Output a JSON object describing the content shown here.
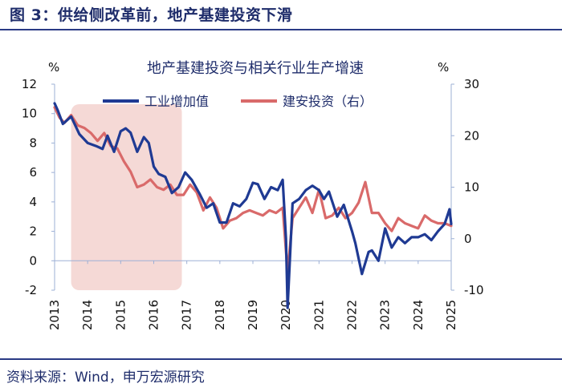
{
  "figure_title": "图 3：供给侧改革前，地产基建投资下滑",
  "source_note": "资料来源：Wind，申万宏源研究",
  "colors": {
    "accent": "#1f2d6b",
    "industry": "#1f3a93",
    "construction": "#d96a6a",
    "shade": "#f5d9d6",
    "axis": "#111111"
  },
  "chart_data": {
    "type": "line",
    "title": "地产基建投资与相关行业生产增速",
    "left_unit": "%",
    "right_unit": "%",
    "x_ticks": [
      "2013",
      "2014",
      "2015",
      "2016",
      "2017",
      "2018",
      "2019",
      "2020",
      "2021",
      "2022",
      "2023",
      "2024",
      "2025"
    ],
    "xlim": [
      2013.0,
      2025.0
    ],
    "left_ylim": [
      -2,
      12
    ],
    "left_ticks": [
      -2,
      0,
      2,
      4,
      6,
      8,
      10,
      12
    ],
    "right_ylim": [
      -10,
      30
    ],
    "right_ticks": [
      -10,
      0,
      10,
      20,
      30
    ],
    "shaded_period": [
      2013.5,
      2016.85
    ],
    "series": [
      {
        "name": "工业增加值",
        "axis": "left",
        "x": [
          2013.0,
          2013.1,
          2013.25,
          2013.5,
          2013.75,
          2014.0,
          2014.25,
          2014.45,
          2014.6,
          2014.8,
          2015.0,
          2015.15,
          2015.3,
          2015.5,
          2015.7,
          2015.85,
          2016.0,
          2016.15,
          2016.35,
          2016.55,
          2016.75,
          2016.95,
          2017.15,
          2017.4,
          2017.6,
          2017.8,
          2018.0,
          2018.2,
          2018.4,
          2018.6,
          2018.8,
          2019.0,
          2019.15,
          2019.35,
          2019.55,
          2019.75,
          2019.9,
          2020.0,
          2020.05,
          2020.2,
          2020.4,
          2020.6,
          2020.8,
          2021.0,
          2021.15,
          2021.3,
          2021.55,
          2021.75,
          2022.0,
          2022.1,
          2022.3,
          2022.5,
          2022.6,
          2022.8,
          2023.0,
          2023.2,
          2023.4,
          2023.6,
          2023.8,
          2024.0,
          2024.2,
          2024.4,
          2024.6,
          2024.8,
          2024.95,
          2025.0
        ],
        "values": [
          10.7,
          10.2,
          9.3,
          9.8,
          8.6,
          8.0,
          7.8,
          7.6,
          8.5,
          7.4,
          8.8,
          9.0,
          8.7,
          7.4,
          8.4,
          8.0,
          6.4,
          5.9,
          5.7,
          4.6,
          5.0,
          6.0,
          5.5,
          4.5,
          3.6,
          3.9,
          2.6,
          2.6,
          3.9,
          3.7,
          4.2,
          5.3,
          5.2,
          4.2,
          5.0,
          4.8,
          5.5,
          1.5,
          -3.2,
          3.9,
          4.2,
          4.8,
          5.1,
          4.8,
          4.2,
          4.7,
          3.0,
          3.8,
          2.0,
          1.2,
          -0.9,
          0.6,
          0.7,
          0.0,
          2.2,
          0.9,
          1.6,
          1.2,
          1.6,
          1.6,
          1.8,
          1.4,
          2.0,
          2.5,
          3.5,
          2.5
        ]
      },
      {
        "name": "建安投资（右）",
        "axis": "right",
        "x": [
          2013.0,
          2013.15,
          2013.3,
          2013.5,
          2013.7,
          2013.9,
          2014.1,
          2014.3,
          2014.5,
          2014.7,
          2014.9,
          2015.1,
          2015.3,
          2015.5,
          2015.7,
          2015.9,
          2016.1,
          2016.3,
          2016.5,
          2016.7,
          2016.9,
          2017.1,
          2017.3,
          2017.5,
          2017.7,
          2017.9,
          2018.1,
          2018.3,
          2018.5,
          2018.7,
          2018.9,
          2019.1,
          2019.3,
          2019.5,
          2019.7,
          2019.9,
          2020.05,
          2020.2,
          2020.4,
          2020.6,
          2020.8,
          2021.0,
          2021.2,
          2021.4,
          2021.6,
          2021.8,
          2022.0,
          2022.2,
          2022.4,
          2022.6,
          2022.8,
          2023.0,
          2023.2,
          2023.4,
          2023.6,
          2023.8,
          2024.0,
          2024.2,
          2024.4,
          2024.6,
          2024.8,
          2025.0
        ],
        "values": [
          25.5,
          23.5,
          22.5,
          24.0,
          22.0,
          21.5,
          20.5,
          19.0,
          20.5,
          18.0,
          17.5,
          15.0,
          13.0,
          10.0,
          10.5,
          11.5,
          10.0,
          9.5,
          10.5,
          8.5,
          8.5,
          10.5,
          9.0,
          5.5,
          8.0,
          6.0,
          2.0,
          3.5,
          4.0,
          5.0,
          5.5,
          5.0,
          4.5,
          5.5,
          5.0,
          6.0,
          -6.5,
          4.0,
          6.0,
          8.0,
          5.0,
          9.5,
          4.0,
          4.5,
          6.0,
          4.0,
          5.0,
          7.0,
          11.0,
          5.0,
          5.0,
          3.0,
          1.5,
          4.0,
          3.0,
          2.5,
          2.0,
          4.5,
          3.5,
          3.0,
          3.0,
          2.5
        ]
      }
    ]
  }
}
